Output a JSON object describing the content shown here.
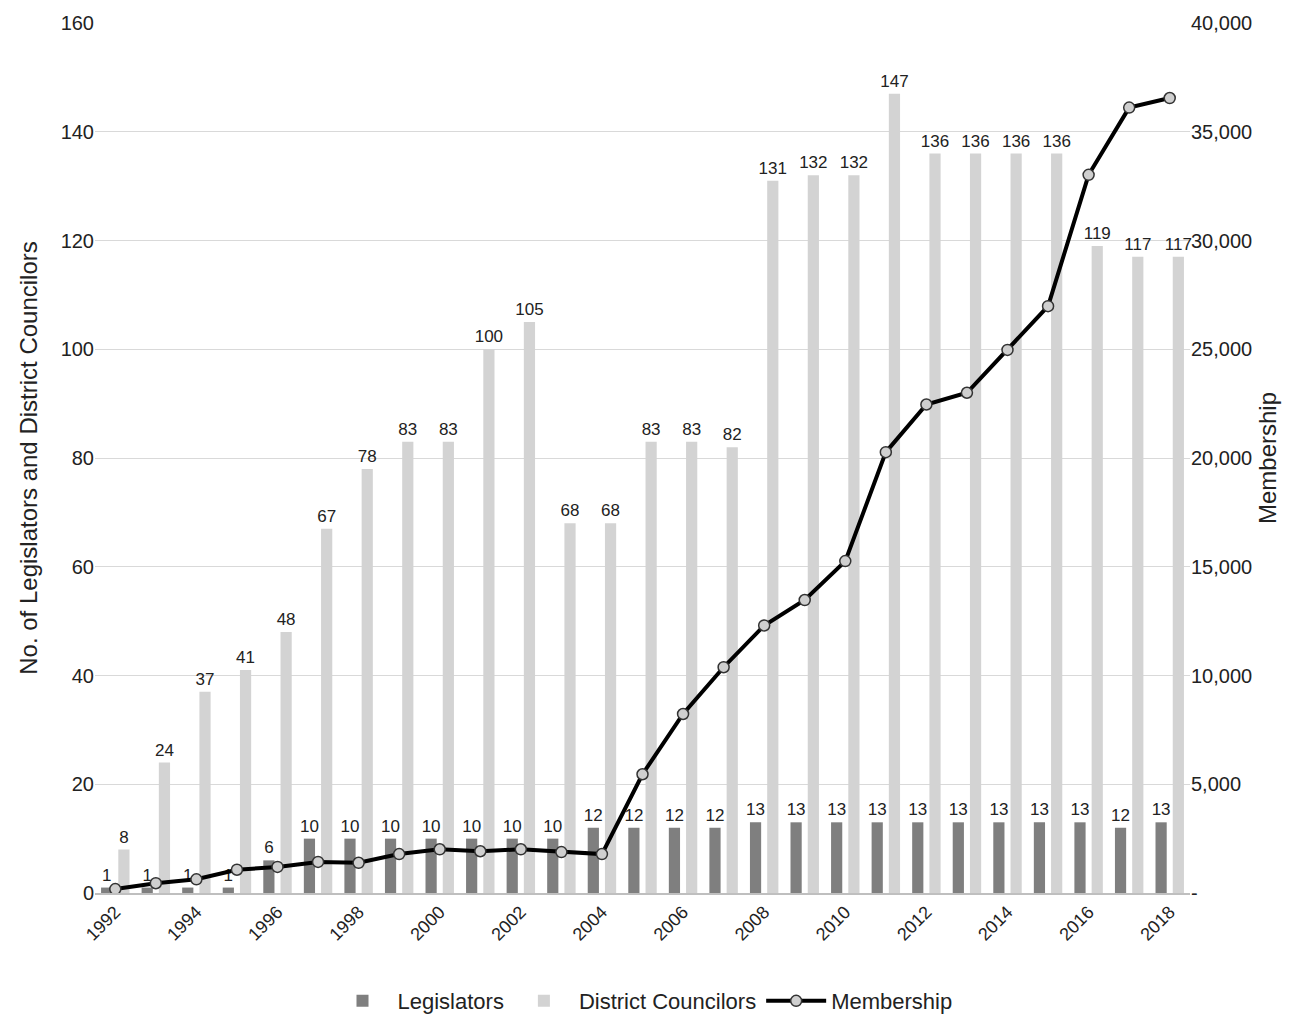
{
  "chart_data": {
    "type": "bar",
    "x": [
      1992,
      1993,
      1994,
      1995,
      1996,
      1997,
      1998,
      1999,
      2000,
      2001,
      2002,
      2003,
      2004,
      2005,
      2006,
      2007,
      2008,
      2009,
      2010,
      2011,
      2012,
      2013,
      2014,
      2015,
      2016,
      2017,
      2018
    ],
    "xlim": [
      1991.5,
      2018.5
    ],
    "xticks": [
      1992,
      1994,
      1996,
      1998,
      2000,
      2002,
      2004,
      2006,
      2008,
      2010,
      2012,
      2014,
      2016,
      2018
    ],
    "y_label": "No. of Legislators and District Councilors",
    "y2_label": "Membership",
    "ylim": [
      0,
      160
    ],
    "yticks": [
      0,
      20,
      40,
      60,
      80,
      100,
      120,
      140,
      160
    ],
    "y2lim": [
      0,
      40000
    ],
    "y2ticks": [
      {
        "value": 0,
        "label": "-"
      },
      {
        "value": 5000,
        "label": "5,000"
      },
      {
        "value": 10000,
        "label": "10,000"
      },
      {
        "value": 15000,
        "label": "15,000"
      },
      {
        "value": 20000,
        "label": "20,000"
      },
      {
        "value": 25000,
        "label": "25,000"
      },
      {
        "value": 30000,
        "label": "30,000"
      },
      {
        "value": 35000,
        "label": "35,000"
      },
      {
        "value": 40000,
        "label": "40,000"
      }
    ],
    "grid": true,
    "legend": "bottom",
    "series": [
      {
        "name": "Legislators",
        "type": "bar",
        "color": "#7f7f7f",
        "data_labels": true,
        "values": [
          1,
          1,
          1,
          1,
          6,
          10,
          10,
          10,
          10,
          10,
          10,
          10,
          12,
          12,
          12,
          12,
          13,
          13,
          13,
          13,
          13,
          13,
          13,
          13,
          13,
          12,
          13
        ]
      },
      {
        "name": "District Councilors",
        "type": "bar",
        "color": "#d3d3d3",
        "data_labels": true,
        "values": [
          8,
          24,
          37,
          41,
          48,
          67,
          78,
          83,
          83,
          100,
          105,
          68,
          68,
          83,
          83,
          82,
          131,
          132,
          132,
          147,
          136,
          136,
          136,
          136,
          119,
          117,
          117
        ]
      },
      {
        "name": "Membership",
        "type": "line",
        "axis": "y2",
        "color": "#000000",
        "marker": "circle",
        "line_style": "solid",
        "data_labels": false,
        "values": [
          180,
          450,
          630,
          1070,
          1200,
          1430,
          1390,
          1790,
          2010,
          1920,
          2010,
          1880,
          1790,
          5460,
          8230,
          10380,
          12300,
          13470,
          15260,
          20270,
          22460,
          23000,
          24970,
          26980,
          33020,
          36110,
          36550
        ]
      }
    ]
  }
}
